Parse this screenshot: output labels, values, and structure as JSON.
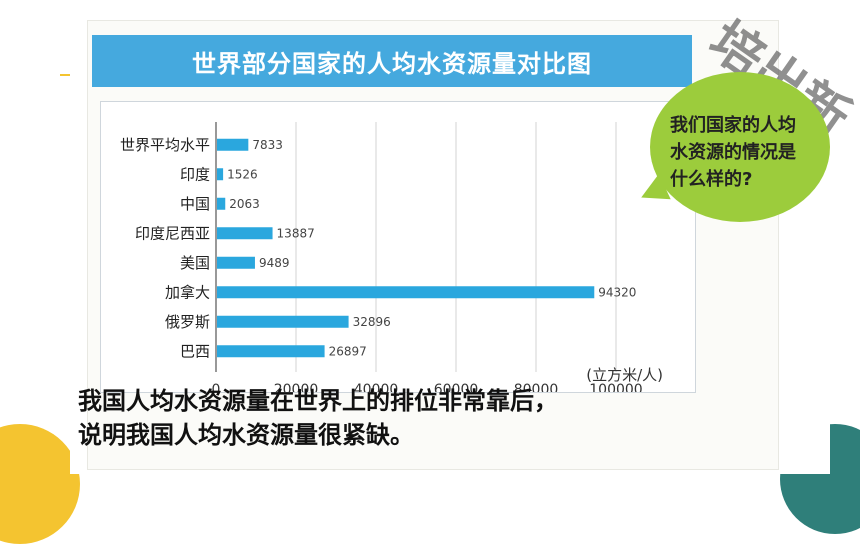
{
  "stamp_text": "培出新",
  "bubble": {
    "line1": "我们国家的人均",
    "line2": "水资源的情况是",
    "line3": "什么样的?"
  },
  "caption": {
    "line1": "我国人均水资源量在世界上的排位非常靠后，",
    "line2": "说明我国人均水资源量很紧缺。"
  },
  "colors": {
    "bar": "#2aa7de",
    "title_bg": "#45a9de",
    "bubble": "#9ccc3c"
  },
  "chart_data": {
    "type": "bar",
    "orientation": "horizontal",
    "title": "世界部分国家的人均水资源量对比图",
    "xlabel": "(立方米/人)",
    "ylabel": "",
    "xlim": [
      0,
      100000
    ],
    "xticks": [
      "0",
      "20000",
      "40000",
      "60000",
      "80000",
      "100000"
    ],
    "xtick_values": [
      0,
      20000,
      40000,
      60000,
      80000,
      100000
    ],
    "grid": true,
    "categories": [
      "世界平均水平",
      "印度",
      "中国",
      "印度尼西亚",
      "美国",
      "加拿大",
      "俄罗斯",
      "巴西"
    ],
    "values": [
      7833,
      1526,
      2063,
      13887,
      9489,
      94320,
      32896,
      26897
    ],
    "value_labels": [
      "7833",
      "1526",
      "2063",
      "13887",
      "9489",
      "94320",
      "32896",
      "26897"
    ]
  }
}
